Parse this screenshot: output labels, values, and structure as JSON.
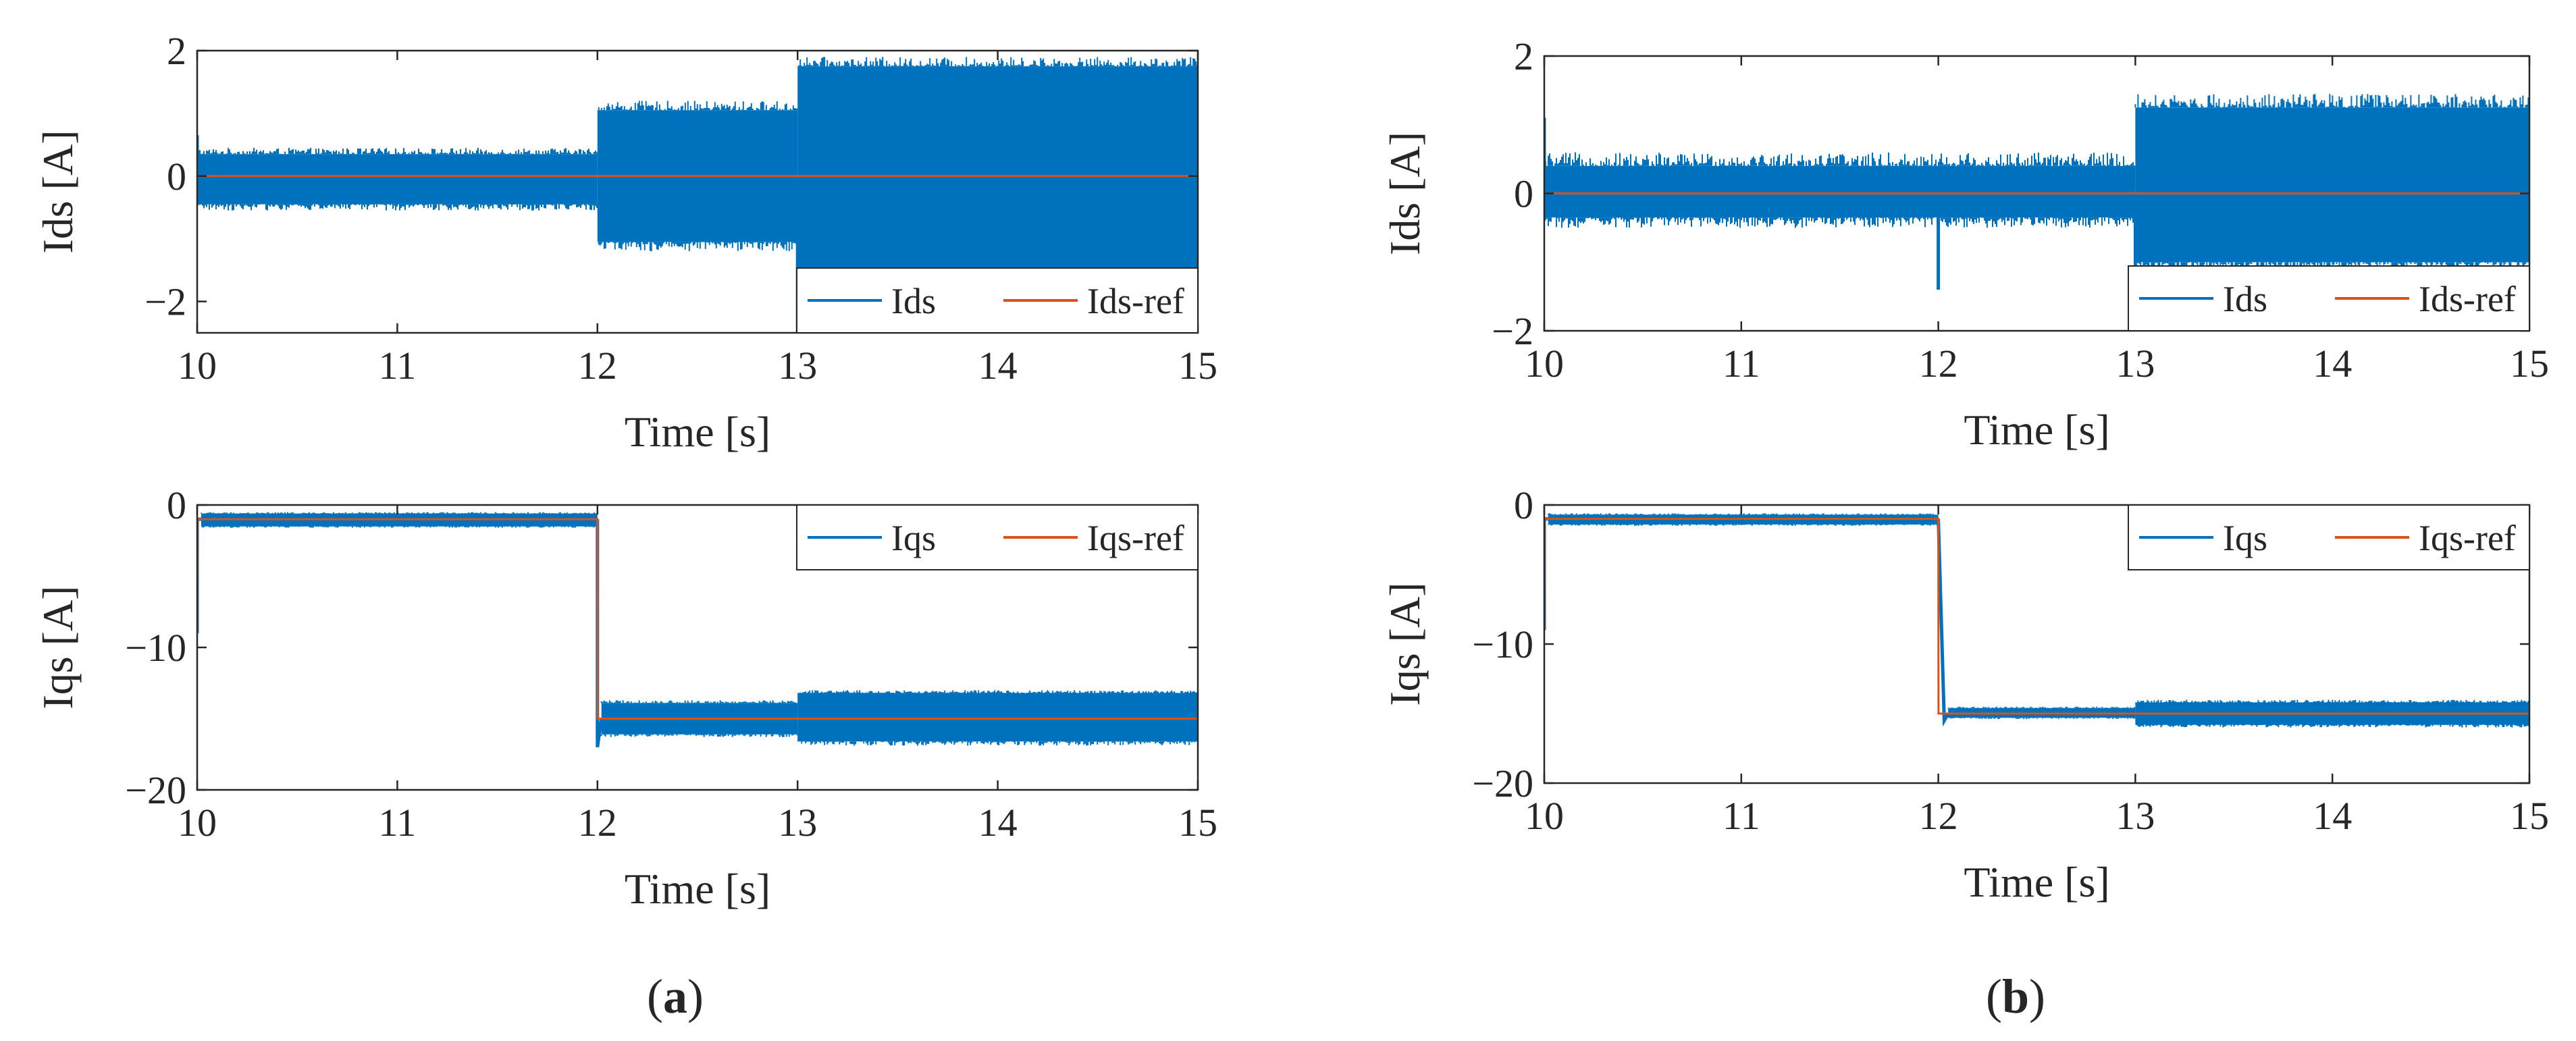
{
  "colors": {
    "measured": "#0072BD",
    "reference": "#D95319",
    "axis": "#262626"
  },
  "panel_labels": [
    {
      "open": "(",
      "letter": "a",
      "close": ")"
    },
    {
      "open": "(",
      "letter": "b",
      "close": ")"
    }
  ],
  "chart_data": [
    {
      "type": "line",
      "panel": "a",
      "xlabel": "Time [s]",
      "ylabel": "Ids [A]",
      "xlim": [
        10,
        15
      ],
      "ylim": [
        -2.5,
        2
      ],
      "xticks": [
        "10",
        "11",
        "12",
        "13",
        "14",
        "15"
      ],
      "yticks": [
        {
          "value": -2,
          "label": "−2"
        },
        {
          "value": 0,
          "label": "0"
        },
        {
          "value": 2,
          "label": "2"
        }
      ],
      "legend": {
        "placement": "bottom-right",
        "entries": [
          "Ids",
          "Ids-ref"
        ]
      },
      "grid": false,
      "series": [
        {
          "name": "Ids",
          "kind": "ripple_band",
          "segments": [
            {
              "x": [
                10,
                12
              ],
              "upper": 0.35,
              "lower": -0.45,
              "upper_peak": 0.45,
              "lower_peak": -0.55
            },
            {
              "x": [
                12,
                13
              ],
              "upper": 1.05,
              "lower": -1.05,
              "upper_peak": 1.2,
              "lower_peak": -1.2
            },
            {
              "x": [
                13,
                15
              ],
              "upper": 1.75,
              "lower": -1.6,
              "upper_peak": 1.9,
              "lower_peak": -1.75
            }
          ],
          "spikes": [
            {
              "x": 10.0,
              "y": 0.65
            },
            {
              "x": 13.0,
              "y": -2.5
            }
          ]
        },
        {
          "name": "Ids-ref",
          "kind": "line",
          "x": [
            10,
            15
          ],
          "y": [
            0,
            0
          ]
        }
      ]
    },
    {
      "type": "line",
      "panel": "a",
      "xlabel": "Time [s]",
      "ylabel": "Iqs [A]",
      "xlim": [
        10,
        15
      ],
      "ylim": [
        -20,
        0
      ],
      "xticks": [
        "10",
        "11",
        "12",
        "13",
        "14",
        "15"
      ],
      "yticks": [
        {
          "value": -20,
          "label": "−20"
        },
        {
          "value": -10,
          "label": "−10"
        },
        {
          "value": 0,
          "label": "0"
        }
      ],
      "legend": {
        "placement": "top-right",
        "entries": [
          "Iqs",
          "Iqs-ref"
        ]
      },
      "grid": false,
      "series": [
        {
          "name": "Iqs",
          "kind": "ripple_band",
          "segments": [
            {
              "x": [
                10.02,
                12
              ],
              "upper": -0.6,
              "lower": -1.5,
              "upper_peak": -0.5,
              "lower_peak": -1.6
            },
            {
              "x": [
                12.02,
                13
              ],
              "upper": -13.9,
              "lower": -16.1,
              "upper_peak": -13.7,
              "lower_peak": -16.3
            },
            {
              "x": [
                13,
                15
              ],
              "upper": -13.2,
              "lower": -16.6,
              "upper_peak": -13.0,
              "lower_peak": -16.9
            }
          ],
          "transitions": [
            {
              "x": [
                10,
                10,
                10.02
              ],
              "y": [
                -9,
                -1,
                -1
              ]
            },
            {
              "x": [
                12,
                12,
                12.02
              ],
              "y": [
                -1,
                -17,
                -15
              ]
            }
          ]
        },
        {
          "name": "Iqs-ref",
          "kind": "line",
          "x": [
            10,
            10.001,
            12,
            12.001,
            15
          ],
          "y": [
            -9,
            -1,
            -1,
            -15,
            -15
          ]
        }
      ]
    },
    {
      "type": "line",
      "panel": "b",
      "xlabel": "Time [s]",
      "ylabel": "Ids [A]",
      "xlim": [
        10,
        15
      ],
      "ylim": [
        -2,
        2
      ],
      "xticks": [
        "10",
        "11",
        "12",
        "13",
        "14",
        "15"
      ],
      "yticks": [
        {
          "value": -2,
          "label": "−2"
        },
        {
          "value": 0,
          "label": "0"
        },
        {
          "value": 2,
          "label": "2"
        }
      ],
      "legend": {
        "placement": "bottom-right",
        "entries": [
          "Ids",
          "Ids-ref"
        ]
      },
      "grid": false,
      "series": [
        {
          "name": "Ids",
          "kind": "ripple_band",
          "segments": [
            {
              "x": [
                10,
                13
              ],
              "upper": 0.4,
              "lower": -0.35,
              "upper_peak": 0.6,
              "lower_peak": -0.5
            },
            {
              "x": [
                13,
                15
              ],
              "upper": 1.25,
              "lower": -1.0,
              "upper_peak": 1.45,
              "lower_peak": -1.15
            }
          ],
          "spikes": [
            {
              "x": 10.0,
              "y": 1.1
            },
            {
              "x": 12.0,
              "y": -1.4
            },
            {
              "x": 13.0,
              "y": -1.6
            }
          ]
        },
        {
          "name": "Ids-ref",
          "kind": "line",
          "x": [
            10,
            15
          ],
          "y": [
            0,
            0
          ]
        }
      ]
    },
    {
      "type": "line",
      "panel": "b",
      "xlabel": "Time [s]",
      "ylabel": "Iqs [A]",
      "xlim": [
        10,
        15
      ],
      "ylim": [
        -20,
        0
      ],
      "xticks": [
        "10",
        "11",
        "12",
        "13",
        "14",
        "15"
      ],
      "yticks": [
        {
          "value": -20,
          "label": "−20"
        },
        {
          "value": -10,
          "label": "−10"
        },
        {
          "value": 0,
          "label": "0"
        }
      ],
      "legend": {
        "placement": "top-right",
        "entries": [
          "Iqs",
          "Iqs-ref"
        ]
      },
      "grid": false,
      "series": [
        {
          "name": "Iqs",
          "kind": "ripple_band",
          "segments": [
            {
              "x": [
                10.02,
                12
              ],
              "upper": -0.7,
              "lower": -1.4,
              "upper_peak": -0.6,
              "lower_peak": -1.5
            },
            {
              "x": [
                12.05,
                13
              ],
              "upper": -14.6,
              "lower": -15.3,
              "upper_peak": -14.5,
              "lower_peak": -15.4
            },
            {
              "x": [
                13,
                15
              ],
              "upper": -14.2,
              "lower": -15.8,
              "upper_peak": -14.0,
              "lower_peak": -16.0
            }
          ],
          "transitions": [
            {
              "x": [
                10,
                10,
                10.02
              ],
              "y": [
                -9,
                -1,
                -1
              ]
            },
            {
              "x": [
                12,
                12.03,
                12.05
              ],
              "y": [
                -1,
                -15.5,
                -15
              ]
            }
          ]
        },
        {
          "name": "Iqs-ref",
          "kind": "line",
          "x": [
            10,
            10.001,
            12,
            12.001,
            15
          ],
          "y": [
            -9,
            -1,
            -1,
            -15,
            -15
          ]
        }
      ]
    }
  ]
}
